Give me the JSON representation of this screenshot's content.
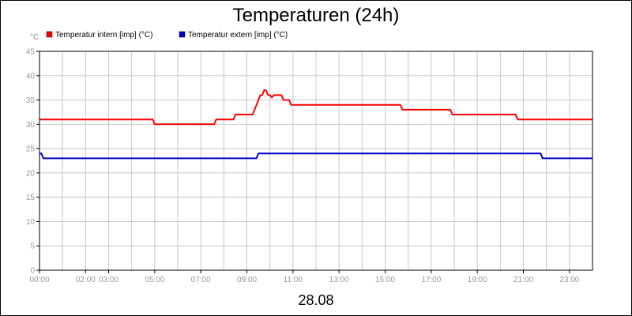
{
  "chart_data": {
    "type": "line",
    "title": "Temperaturen (24h)",
    "unit_label": "°C",
    "date_label": "28.08",
    "xlabel": "",
    "ylabel": "°C",
    "xlim": [
      "00:00",
      "24:00"
    ],
    "ylim": [
      0,
      45
    ],
    "y_ticks": [
      0,
      5,
      10,
      15,
      20,
      25,
      30,
      35,
      40,
      45
    ],
    "x_ticks": [
      {
        "t": "00:00",
        "label": "00:00"
      },
      {
        "t": "02:00",
        "label": "02:00"
      },
      {
        "t": "03:00",
        "label": "03:00"
      },
      {
        "t": "05:00",
        "label": "05:00"
      },
      {
        "t": "07:00",
        "label": "07:00"
      },
      {
        "t": "09:00",
        "label": "09:00"
      },
      {
        "t": "11:00",
        "label": "11:00"
      },
      {
        "t": "13:00",
        "label": "13:00"
      },
      {
        "t": "15:00",
        "label": "15:00"
      },
      {
        "t": "17:00",
        "label": "17:00"
      },
      {
        "t": "19:00",
        "label": "19:00"
      },
      {
        "t": "21:00",
        "label": "21:00"
      },
      {
        "t": "23:00",
        "label": "23:00"
      }
    ],
    "grid": true,
    "legend_position": "top-left",
    "series": [
      {
        "name": "Temperatur intern [imp] (°C)",
        "color": "#ff0000",
        "points": [
          [
            "00:00",
            31
          ],
          [
            "04:55",
            31
          ],
          [
            "05:00",
            30
          ],
          [
            "07:35",
            30
          ],
          [
            "07:40",
            31
          ],
          [
            "08:25",
            31
          ],
          [
            "08:30",
            32
          ],
          [
            "09:15",
            32
          ],
          [
            "09:25",
            34
          ],
          [
            "09:35",
            36
          ],
          [
            "09:40",
            36
          ],
          [
            "09:45",
            37
          ],
          [
            "09:50",
            37
          ],
          [
            "09:55",
            36
          ],
          [
            "10:00",
            36
          ],
          [
            "10:05",
            35.5
          ],
          [
            "10:10",
            36
          ],
          [
            "10:30",
            36
          ],
          [
            "10:35",
            35
          ],
          [
            "10:50",
            35
          ],
          [
            "10:55",
            34
          ],
          [
            "15:40",
            34
          ],
          [
            "15:45",
            33
          ],
          [
            "17:50",
            33
          ],
          [
            "17:55",
            32
          ],
          [
            "20:40",
            32
          ],
          [
            "20:45",
            31
          ],
          [
            "24:00",
            31
          ]
        ]
      },
      {
        "name": "Temperatur extern [imp] (°C)",
        "color": "#0000cc",
        "points": [
          [
            "00:00",
            24
          ],
          [
            "00:05",
            24
          ],
          [
            "00:10",
            23
          ],
          [
            "09:25",
            23
          ],
          [
            "09:30",
            24
          ],
          [
            "21:45",
            24
          ],
          [
            "21:50",
            23
          ],
          [
            "24:00",
            23
          ]
        ]
      }
    ]
  }
}
